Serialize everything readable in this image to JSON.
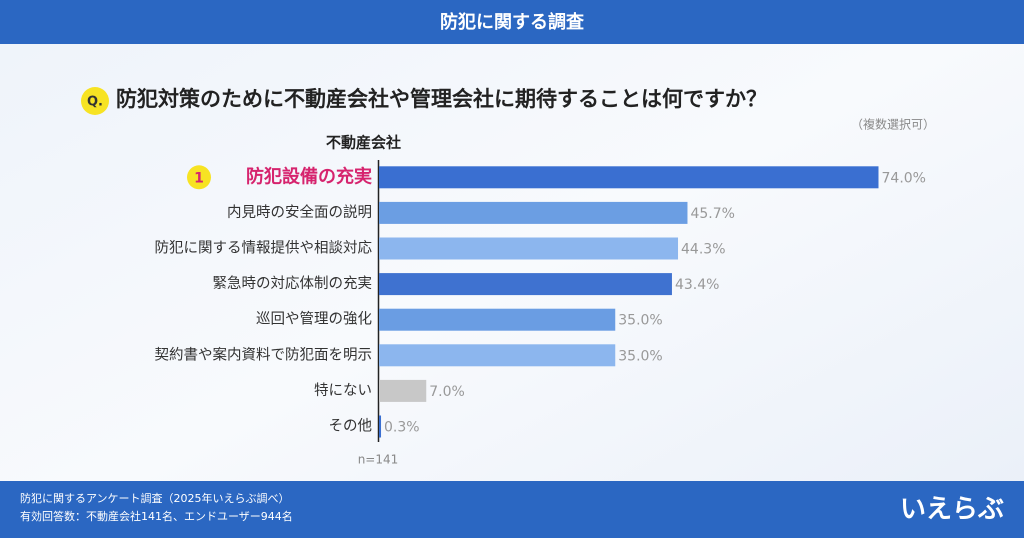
{
  "header": {
    "title": "防犯に関する調査"
  },
  "question": {
    "badge": "Q.",
    "text": "防犯対策のために不動産会社や管理会社に期待することは何ですか？",
    "note": "（複数選択可）"
  },
  "chart_data": {
    "type": "bar",
    "orientation": "horizontal",
    "title": "不動産会社",
    "rank_badge": "1",
    "categories": [
      "防犯設備の充実",
      "内見時の安全面の説明",
      "防犯に関する情報提供や相談対応",
      "緊急時の対応体制の充実",
      "巡回や管理の強化",
      "契約書や案内資料で防犯面を明示",
      "特にない",
      "その他"
    ],
    "values": [
      74.0,
      45.7,
      44.3,
      43.4,
      35.0,
      35.0,
      7.0,
      0.3
    ],
    "value_labels": [
      "74.0%",
      "45.7%",
      "44.3%",
      "43.4%",
      "35.0%",
      "35.0%",
      "7.0%",
      "0.3%"
    ],
    "colors": [
      "#3a6fd1",
      "#6b9ee3",
      "#8cb6ee",
      "#3f72d0",
      "#6a9de3",
      "#8cb6ee",
      "#c8c8c8",
      "#3a6fd1"
    ],
    "xlim": [
      0,
      100
    ],
    "note": "n=141"
  },
  "footer": {
    "lines": [
      "防犯に関するアンケート調査（2025年いえらぶ調べ）",
      "有効回答数：不動産会社141名、エンドユーザー944名"
    ],
    "logo": "いえらぶ"
  }
}
